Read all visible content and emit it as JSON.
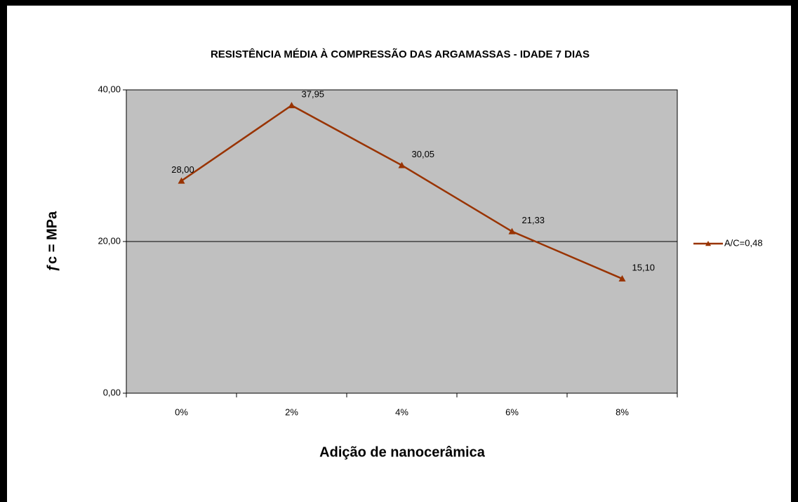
{
  "chart_data": {
    "type": "line",
    "title": "RESISTÊNCIA MÉDIA À COMPRESSÃO DAS ARGAMASSAS - IDADE 7 DIAS",
    "x_label": "Adição de nanocerâmica",
    "y_label": "ƒc = MPa",
    "categories": [
      "0%",
      "2%",
      "4%",
      "6%",
      "8%"
    ],
    "series": [
      {
        "name": "A/C=0,48",
        "color": "#993300",
        "values": [
          28,
          37.95,
          30.05,
          21.33,
          15.1
        ],
        "value_labels": [
          "28,00",
          "37,95",
          "30,05",
          "21,33",
          "15,10"
        ]
      }
    ],
    "ylim": [
      0,
      40
    ],
    "yticks": [
      {
        "value": 0,
        "label": "0,00"
      },
      {
        "value": 20,
        "label": "20,00"
      },
      {
        "value": 40,
        "label": "40,00"
      }
    ],
    "grid": true,
    "legend": "right"
  }
}
